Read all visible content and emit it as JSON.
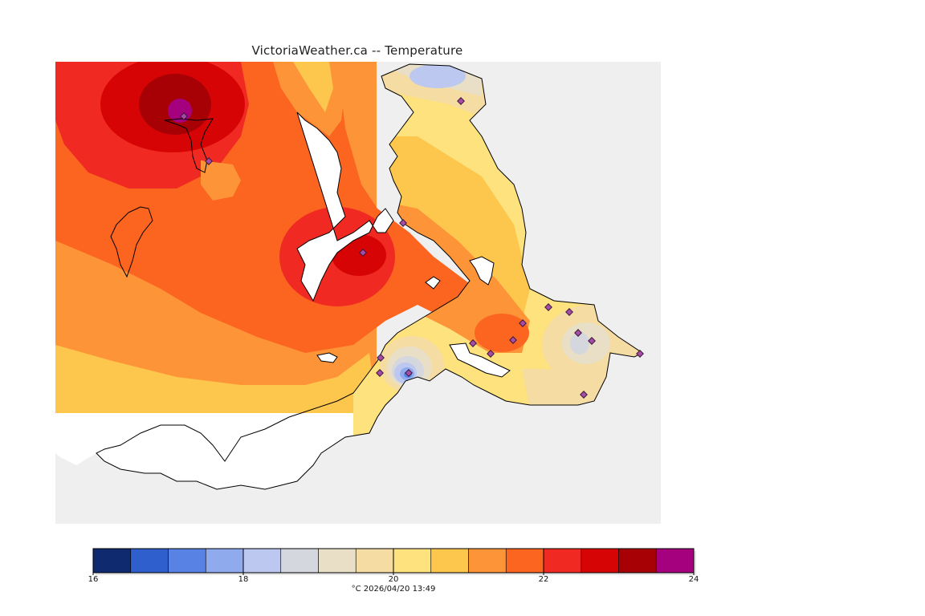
{
  "title": "VictoriaWeather.ca -- Temperature",
  "colorbar": {
    "min": 16,
    "max": 24,
    "step": 0.5,
    "tick_labels": [
      "16",
      "18",
      "20",
      "22",
      "24"
    ],
    "colors": [
      "#0f2a6e",
      "#2f5fcc",
      "#5882e3",
      "#90aaee",
      "#bcc8f0",
      "#d5d7de",
      "#e8dfc6",
      "#f5dca3",
      "#fde27e",
      "#fdc64c",
      "#fd9438",
      "#fc6520",
      "#f02a22",
      "#d70406",
      "#a70105",
      "#a5007d"
    ]
  },
  "caption": "°C  2026/04/20 13:49",
  "land_color": "#efefef",
  "water_color": "#ffffff",
  "station_marker_color": "#a64ca6"
}
